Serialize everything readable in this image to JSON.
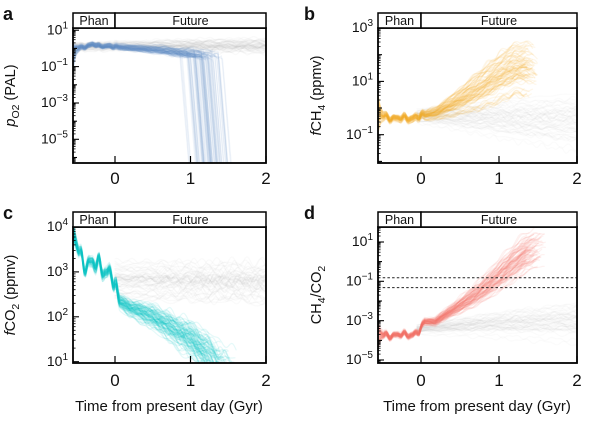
{
  "figure": {
    "background": "#ffffff",
    "xlabel": "Time from present day (Gyr)",
    "region_labels": {
      "phan": "Phan",
      "future": "Future"
    }
  },
  "chart_data": [
    {
      "panel": "a",
      "type": "line-ensemble",
      "x_axis": {
        "label": "Time from present day (Gyr)",
        "range": [
          -0.556,
          2.0
        ],
        "ticks": [
          0,
          1,
          2
        ]
      },
      "y_axis": {
        "label": "pO2 (PAL)",
        "scale": "log",
        "range_exp": [
          -6.3,
          1.12
        ],
        "tick_exps": [
          1,
          -1,
          -3,
          -5
        ],
        "label_parts": [
          {
            "text": "p",
            "italic": true
          },
          {
            "text": "O",
            "sub": true
          },
          {
            "text": "2",
            "sub": true
          },
          {
            "text": " (PAL)"
          }
        ]
      },
      "regions": [
        {
          "label": "Phan",
          "from": -0.556,
          "to": 0
        },
        {
          "label": "Future",
          "from": 0,
          "to": 2
        }
      ],
      "series": [
        {
          "name": "background-runs",
          "color": "#bdbdbd",
          "alpha": 0.07,
          "n_traces": 50,
          "median": [
            [
              -0.556,
              0.05
            ],
            [
              0,
              0.1
            ],
            [
              1,
              0.12
            ],
            [
              2,
              0.1
            ]
          ],
          "half_width": [
            [
              -0.556,
              0.28
            ],
            [
              0,
              0.3
            ],
            [
              1,
              0.38
            ],
            [
              2,
              0.45
            ]
          ],
          "wiggle_amp": 0.04,
          "init_extra": [
            0,
            0
          ],
          "end": {
            "mode": "none"
          }
        },
        {
          "name": "oxygen-runs",
          "color": "#638fc4",
          "alpha": 0.09,
          "n_traces": 90,
          "median": [
            [
              -0.556,
              0.0
            ],
            [
              -0.4,
              0.1
            ],
            [
              -0.3,
              0.22
            ],
            [
              -0.2,
              0.12
            ],
            [
              -0.1,
              0.15
            ],
            [
              0,
              0.08
            ],
            [
              0.3,
              0.0
            ],
            [
              0.6,
              -0.1
            ],
            [
              0.9,
              -0.25
            ],
            [
              1.2,
              -0.35
            ],
            [
              1.5,
              -0.42
            ]
          ],
          "half_width": [
            [
              -0.556,
              0.15
            ],
            [
              0,
              0.18
            ],
            [
              0.5,
              0.25
            ],
            [
              1,
              0.3
            ],
            [
              1.5,
              0.32
            ]
          ],
          "wiggle_amp": 0.06,
          "init_extra": [
            -1.6,
            0.1
          ],
          "end": {
            "mode": "plunge",
            "t_range": [
              0.78,
              1.47
            ],
            "slope": -50,
            "triangular": true
          }
        }
      ]
    },
    {
      "panel": "b",
      "type": "line-ensemble",
      "x_axis": {
        "label": "Time from present day (Gyr)",
        "range": [
          -0.551,
          2.0
        ],
        "ticks": [
          0,
          1,
          2
        ]
      },
      "y_axis": {
        "label": "fCH4 (ppmv)",
        "scale": "log",
        "range_exp": [
          -2.06,
          3.0
        ],
        "tick_exps": [
          3,
          1,
          -1
        ],
        "label_parts": [
          {
            "text": "f",
            "italic": true
          },
          {
            "text": "CH"
          },
          {
            "text": "4",
            "sub": true
          },
          {
            "text": " (ppmv)"
          }
        ]
      },
      "regions": [
        {
          "label": "Phan",
          "from": -0.551,
          "to": 0
        },
        {
          "label": "Future",
          "from": 0,
          "to": 2
        }
      ],
      "series": [
        {
          "name": "background-runs",
          "color": "#c4c4c4",
          "alpha": 0.07,
          "n_traces": 50,
          "t_start": -0.05,
          "median": [
            [
              -0.05,
              -0.3
            ],
            [
              0.5,
              -0.35
            ],
            [
              1,
              -0.42
            ],
            [
              2,
              -0.55
            ]
          ],
          "half_width": [
            [
              -0.05,
              0.3
            ],
            [
              0.5,
              0.55
            ],
            [
              1,
              0.8
            ],
            [
              2,
              1.2
            ]
          ],
          "wiggle_amp": 0,
          "init_extra": [
            0,
            0
          ],
          "end": {
            "mode": "none"
          }
        },
        {
          "name": "methane-runs",
          "color": "#f1b52e",
          "alpha": 0.1,
          "n_traces": 90,
          "median": [
            [
              -0.551,
              -0.25
            ],
            [
              -0.3,
              -0.4
            ],
            [
              -0.1,
              -0.35
            ],
            [
              0,
              -0.3
            ],
            [
              0.2,
              -0.15
            ],
            [
              0.4,
              0.15
            ],
            [
              0.6,
              0.5
            ],
            [
              0.8,
              0.85
            ],
            [
              1.0,
              1.25
            ],
            [
              1.2,
              1.55
            ],
            [
              1.35,
              1.6
            ],
            [
              1.5,
              1.45
            ]
          ],
          "half_width": [
            [
              -0.551,
              0.13
            ],
            [
              0,
              0.17
            ],
            [
              0.3,
              0.4
            ],
            [
              0.6,
              0.75
            ],
            [
              0.9,
              1.1
            ],
            [
              1.2,
              1.25
            ],
            [
              1.5,
              1.3
            ]
          ],
          "wiggle_amp": 0.12,
          "init_extra": [
            -0.7,
            1.0
          ],
          "end": {
            "mode": "stop",
            "t_range": [
              1.3,
              1.5
            ]
          }
        }
      ]
    },
    {
      "panel": "c",
      "type": "line-ensemble",
      "x_axis": {
        "label": "Time from present day (Gyr)",
        "range": [
          -0.556,
          2.0
        ],
        "ticks": [
          0,
          1,
          2
        ]
      },
      "y_axis": {
        "label": "fCO2 (ppmv)",
        "scale": "log",
        "range_exp": [
          0.97,
          4.0
        ],
        "tick_exps": [
          4,
          3,
          2,
          1
        ],
        "label_parts": [
          {
            "text": "f",
            "italic": true
          },
          {
            "text": "CO"
          },
          {
            "text": "2",
            "sub": true
          },
          {
            "text": " (ppmv)"
          }
        ]
      },
      "regions": [
        {
          "label": "Phan",
          "from": -0.556,
          "to": 0
        },
        {
          "label": "Future",
          "from": 0,
          "to": 2
        }
      ],
      "series": [
        {
          "name": "background-runs",
          "color": "#c4c4c4",
          "alpha": 0.08,
          "n_traces": 50,
          "t_start": 0.0,
          "median": [
            [
              0,
              2.85
            ],
            [
              1,
              2.82
            ],
            [
              2,
              2.8
            ]
          ],
          "half_width": [
            [
              0,
              0.48
            ],
            [
              2,
              0.5
            ]
          ],
          "wiggle_amp": 0,
          "init_extra": [
            0,
            0
          ],
          "end": {
            "mode": "none"
          }
        },
        {
          "name": "co2-runs",
          "color": "#13c5c5",
          "alpha": 0.11,
          "n_traces": 90,
          "median": [
            [
              -0.556,
              3.8
            ],
            [
              -0.48,
              3.45
            ],
            [
              -0.42,
              3.25
            ],
            [
              -0.3,
              3.15
            ],
            [
              -0.15,
              3.1
            ],
            [
              -0.05,
              2.95
            ],
            [
              0.05,
              2.35
            ],
            [
              0.2,
              2.2
            ],
            [
              0.5,
              2.0
            ],
            [
              0.8,
              1.7
            ],
            [
              1.0,
              1.5
            ],
            [
              1.2,
              1.2
            ],
            [
              1.4,
              0.9
            ],
            [
              1.6,
              0.7
            ]
          ],
          "half_width": [
            [
              -0.556,
              0.12
            ],
            [
              -0.05,
              0.13
            ],
            [
              0.05,
              0.17
            ],
            [
              0.5,
              0.3
            ],
            [
              0.9,
              0.42
            ],
            [
              1.3,
              0.55
            ],
            [
              1.6,
              0.6
            ]
          ],
          "wiggle_amp": 0.26,
          "init_extra": [
            -0.1,
            0.25
          ],
          "end": {
            "mode": "stop",
            "t_range": [
              1.15,
              1.62
            ]
          }
        }
      ]
    },
    {
      "panel": "d",
      "type": "line-ensemble",
      "x_axis": {
        "label": "Time from present day (Gyr)",
        "range": [
          -0.551,
          2.0
        ],
        "ticks": [
          0,
          1,
          2
        ]
      },
      "y_axis": {
        "label": "CH4/CO2",
        "scale": "log",
        "range_exp": [
          -5.15,
          1.76
        ],
        "tick_exps": [
          1,
          -1,
          -3,
          -5
        ],
        "label_parts": [
          {
            "text": "CH"
          },
          {
            "text": "4",
            "sub": true
          },
          {
            "text": "/CO"
          },
          {
            "text": "2",
            "sub": true
          }
        ]
      },
      "regions": [
        {
          "label": "Phan",
          "from": -0.551,
          "to": 0
        },
        {
          "label": "Future",
          "from": 0,
          "to": 2
        }
      ],
      "threshold_lines_exp": [
        -0.82,
        -1.32
      ],
      "series": [
        {
          "name": "background-runs",
          "color": "#c4c4c4",
          "alpha": 0.07,
          "n_traces": 50,
          "t_start": -0.05,
          "median": [
            [
              -0.05,
              -3.45
            ],
            [
              0.5,
              -3.3
            ],
            [
              1,
              -3.2
            ],
            [
              2,
              -3.1
            ]
          ],
          "half_width": [
            [
              -0.05,
              0.3
            ],
            [
              0.5,
              0.55
            ],
            [
              1,
              0.8
            ],
            [
              2,
              1.25
            ]
          ],
          "wiggle_amp": 0,
          "init_extra": [
            0,
            0
          ],
          "end": {
            "mode": "none"
          }
        },
        {
          "name": "ch4-co2-ratio-runs",
          "color": "#f1796c",
          "alpha": 0.1,
          "n_traces": 90,
          "median": [
            [
              -0.551,
              -3.7
            ],
            [
              -0.3,
              -3.75
            ],
            [
              -0.1,
              -3.68
            ],
            [
              -0.02,
              -3.55
            ],
            [
              0.05,
              -3.05
            ],
            [
              0.18,
              -3.05
            ],
            [
              0.35,
              -2.6
            ],
            [
              0.55,
              -2.1
            ],
            [
              0.75,
              -1.55
            ],
            [
              0.95,
              -0.9
            ],
            [
              1.15,
              -0.2
            ],
            [
              1.35,
              0.45
            ],
            [
              1.55,
              0.8
            ]
          ],
          "half_width": [
            [
              -0.551,
              0.15
            ],
            [
              0,
              0.18
            ],
            [
              0.3,
              0.3
            ],
            [
              0.6,
              0.55
            ],
            [
              0.9,
              0.85
            ],
            [
              1.2,
              1.1
            ],
            [
              1.55,
              1.2
            ]
          ],
          "wiggle_amp": 0.17,
          "init_extra": [
            -0.8,
            0.6
          ],
          "end": {
            "mode": "stop",
            "t_range": [
              1.35,
              1.6
            ]
          }
        }
      ]
    }
  ]
}
